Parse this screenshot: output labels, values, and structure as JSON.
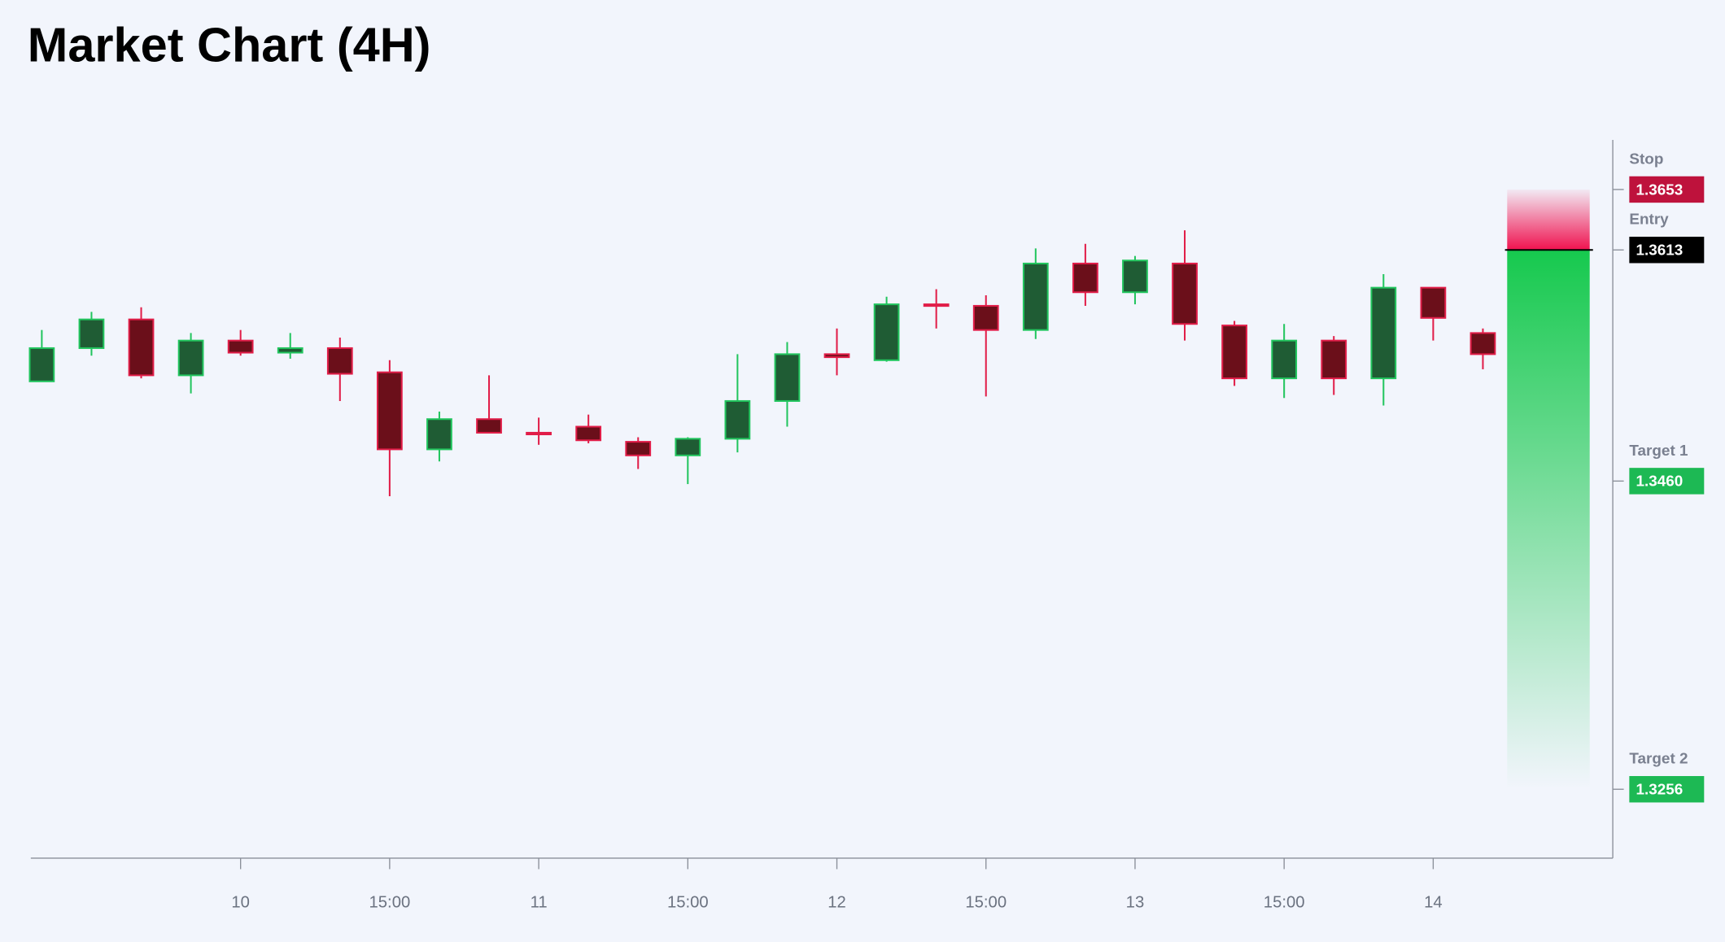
{
  "chart_data": {
    "type": "candlestick",
    "title": "Market Chart (4H)",
    "categories": [
      null,
      null,
      null,
      null,
      "10",
      null,
      null,
      "15:00",
      null,
      null,
      "11",
      null,
      null,
      "15:00",
      null,
      null,
      "12",
      null,
      null,
      "15:00",
      null,
      null,
      "13",
      null,
      null,
      "15:00",
      null,
      null,
      "14",
      null
    ],
    "open": [
      1.3526,
      1.3548,
      1.3567,
      1.353,
      1.3553,
      1.3545,
      1.3548,
      1.3532,
      1.3481,
      1.3501,
      1.3492,
      1.3496,
      1.3486,
      1.3477,
      1.3488,
      1.3513,
      1.3544,
      1.354,
      1.3577,
      1.3576,
      1.356,
      1.3604,
      1.3585,
      1.3604,
      1.3563,
      1.3528,
      1.3553,
      1.3528,
      1.3588,
      1.3558
    ],
    "high": [
      1.356,
      1.3572,
      1.3575,
      1.3558,
      1.356,
      1.3558,
      1.3555,
      1.354,
      1.3506,
      1.353,
      1.3502,
      1.3504,
      1.3489,
      1.3489,
      1.3544,
      1.3552,
      1.3561,
      1.3582,
      1.3587,
      1.3583,
      1.3614,
      1.3617,
      1.3609,
      1.3626,
      1.3566,
      1.3564,
      1.3556,
      1.3597,
      1.3588,
      1.3561
    ],
    "low": [
      1.3526,
      1.3543,
      1.3528,
      1.3518,
      1.3543,
      1.3541,
      1.3513,
      1.345,
      1.3473,
      1.3492,
      1.3484,
      1.3485,
      1.3468,
      1.3458,
      1.3479,
      1.3496,
      1.353,
      1.3539,
      1.3561,
      1.3516,
      1.3554,
      1.3576,
      1.3577,
      1.3553,
      1.3523,
      1.3515,
      1.3517,
      1.351,
      1.3553,
      1.3534
    ],
    "close": [
      1.3548,
      1.3567,
      1.353,
      1.3553,
      1.3545,
      1.3548,
      1.3531,
      1.3481,
      1.3501,
      1.3492,
      1.3491,
      1.3487,
      1.3477,
      1.3488,
      1.3513,
      1.3544,
      1.3542,
      1.3577,
      1.3576,
      1.356,
      1.3604,
      1.3585,
      1.3606,
      1.3564,
      1.3528,
      1.3553,
      1.3528,
      1.3588,
      1.3568,
      1.3544
    ],
    "up_color": "#22c55e",
    "up_fill": "#1f5c34",
    "down_color": "#e11d48",
    "down_fill": "#6b0f1a",
    "ylim": [
      1.32104,
      1.36858
    ],
    "levels": [
      {
        "name": "Stop",
        "value": 1.3653,
        "label": "1.3653",
        "color": "#be123c"
      },
      {
        "name": "Entry",
        "value": 1.3613,
        "label": "1.3613",
        "color": "#000000"
      },
      {
        "name": "Target 1",
        "value": 1.346,
        "label": "1.3460",
        "color": "#1db954"
      },
      {
        "name": "Target 2",
        "value": 1.3256,
        "label": "1.3256",
        "color": "#1db954"
      }
    ]
  }
}
